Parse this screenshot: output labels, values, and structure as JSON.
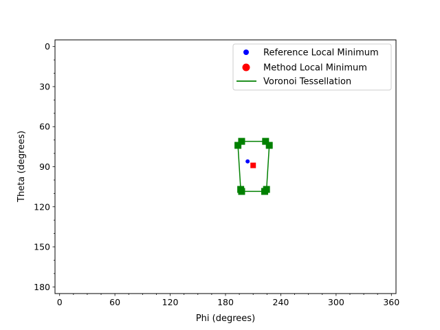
{
  "chart_data": {
    "type": "scatter",
    "title": "",
    "xlabel": "Phi (degrees)",
    "ylabel": "Theta (degrees)",
    "xlim": [
      -5,
      365
    ],
    "ylim": [
      185,
      -5
    ],
    "y_inverted": true,
    "x_major_ticks": [
      0,
      60,
      120,
      180,
      240,
      300,
      360
    ],
    "x_minor_step": 15,
    "y_major_ticks": [
      0,
      30,
      60,
      90,
      120,
      150,
      180
    ],
    "y_minor_step": 10,
    "grid": false,
    "legend": {
      "position": "top-right",
      "entries": [
        {
          "label": "Reference Local Minimum",
          "color": "#0000ff",
          "marker": "dot"
        },
        {
          "label": "Method Local Minimum",
          "color": "#ff0000",
          "marker": "dot-large"
        },
        {
          "label": "Voronoi Tessellation",
          "color": "#008000",
          "marker": "line"
        }
      ]
    },
    "series": [
      {
        "name": "Reference Local Minimum",
        "color": "#0000ff",
        "marker": "circle",
        "points": [
          {
            "x": 204,
            "y": 86
          }
        ]
      },
      {
        "name": "Method Local Minimum",
        "color": "#ff0000",
        "marker": "square",
        "points": [
          {
            "x": 210,
            "y": 89
          }
        ]
      },
      {
        "name": "Voronoi Tessellation",
        "color": "#008000",
        "marker": "square",
        "polygon": [
          {
            "x": 197.5,
            "y": 71
          },
          {
            "x": 193.5,
            "y": 74
          },
          {
            "x": 196.5,
            "y": 107
          },
          {
            "x": 197.5,
            "y": 108.5
          },
          {
            "x": 222.5,
            "y": 108.5
          },
          {
            "x": 224.5,
            "y": 107
          },
          {
            "x": 227.5,
            "y": 74
          },
          {
            "x": 223.5,
            "y": 71
          }
        ]
      }
    ]
  }
}
